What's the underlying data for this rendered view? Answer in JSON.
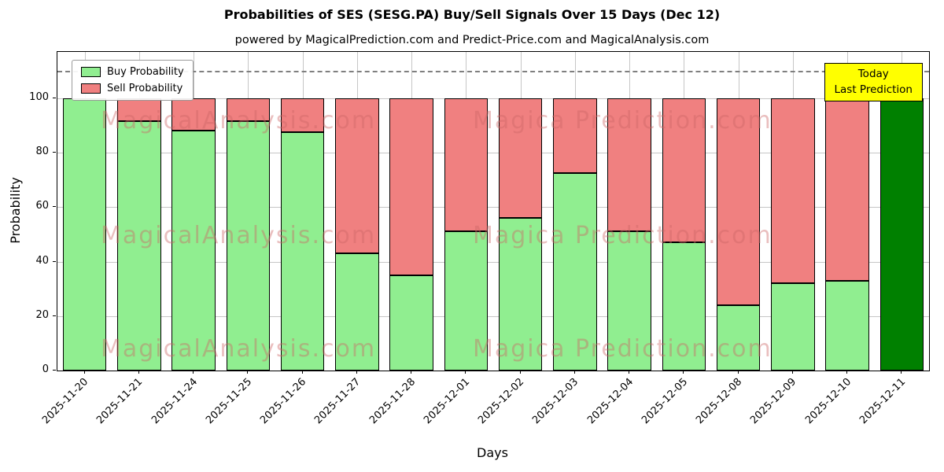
{
  "chart_data": {
    "type": "bar",
    "stacked": true,
    "title": "Probabilities of SES (SESG.PA) Buy/Sell Signals Over 15 Days (Dec 12)",
    "subtitle": "powered by MagicalPrediction.com and Predict-Price.com and MagicalAnalysis.com",
    "xlabel": "Days",
    "ylabel": "Probability",
    "ylim": [
      0,
      117
    ],
    "yticks": [
      0,
      20,
      40,
      60,
      80,
      100
    ],
    "grid": true,
    "dashed_line_y": 110,
    "legend_position": "upper left",
    "categories": [
      "2025-11-20",
      "2025-11-21",
      "2025-11-24",
      "2025-11-25",
      "2025-11-26",
      "2025-11-27",
      "2025-11-28",
      "2025-12-01",
      "2025-12-02",
      "2025-12-03",
      "2025-12-04",
      "2025-12-05",
      "2025-12-08",
      "2025-12-09",
      "2025-12-10",
      "2025-12-11"
    ],
    "series": [
      {
        "name": "Buy Probability",
        "color": "#90ee90",
        "values": [
          100,
          91.5,
          88,
          91.5,
          87.5,
          43,
          35,
          51,
          56,
          72.5,
          51,
          47,
          24,
          32,
          33,
          100
        ]
      },
      {
        "name": "Sell Probability",
        "color": "#f08080",
        "values": [
          0,
          8.5,
          12,
          8.5,
          12.5,
          57,
          65,
          49,
          44,
          27.5,
          49,
          53,
          76,
          68,
          67,
          0
        ]
      }
    ],
    "today_index": 15,
    "today_color": "#008000",
    "bar_edge_color": "#000000"
  },
  "annotation": {
    "line1": "Today",
    "line2": "Last Prediction",
    "bg": "#ffff00"
  },
  "watermarks": {
    "left_text": "MagicalAnalysis.com",
    "right_text": "Magica Prediction.com",
    "color": "rgba(205,102,102,0.42)"
  }
}
